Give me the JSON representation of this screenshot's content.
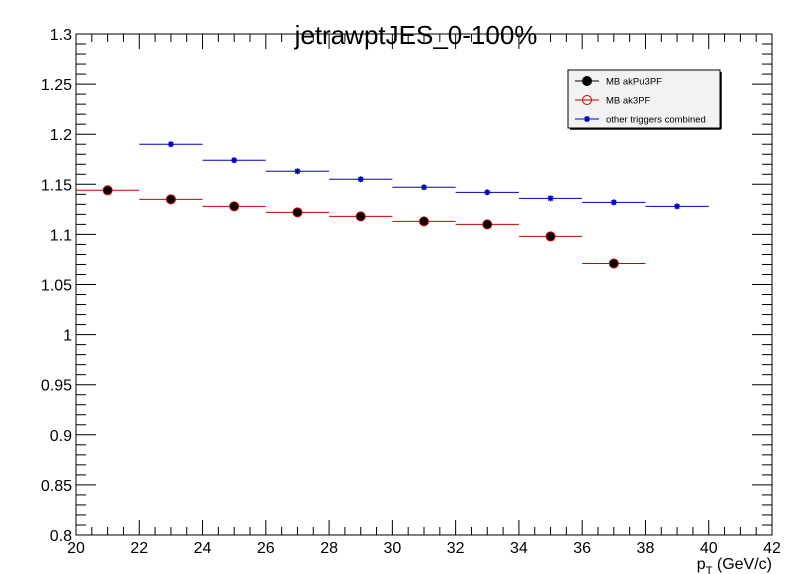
{
  "chart_data": {
    "type": "scatter",
    "title": "jetrawptJES_0-100%",
    "xlabel_main": "p",
    "xlabel_sub": "T",
    "xlabel_rest": " (GeV/c)",
    "ylabel": "",
    "xlim": [
      20,
      42
    ],
    "ylim": [
      0.8,
      1.3
    ],
    "x_ticks": [
      "20",
      "22",
      "24",
      "26",
      "28",
      "30",
      "32",
      "34",
      "36",
      "38",
      "40",
      "42"
    ],
    "y_ticks": [
      "0.8",
      "0.85",
      "0.9",
      "0.95",
      "1",
      "1.05",
      "1.1",
      "1.15",
      "1.2",
      "1.25",
      "1.3"
    ],
    "grid": false,
    "legend_position": "top-right",
    "series": [
      {
        "name": "MB akPu3PF",
        "marker": "filled-circle",
        "color": "#cc0000",
        "marker_fill": "#000000",
        "x": [
          21,
          23,
          25,
          27,
          29,
          31,
          33,
          35,
          37
        ],
        "xerr": 1,
        "y": [
          1.144,
          1.135,
          1.128,
          1.122,
          1.118,
          1.113,
          1.11,
          1.098,
          1.071
        ]
      },
      {
        "name": "MB ak3PF",
        "marker": "open-circle",
        "color": "#cc0000",
        "marker_fill": "none",
        "x": [],
        "xerr": 1,
        "y": []
      },
      {
        "name": "other triggers combined",
        "marker": "star",
        "color": "#0000cc",
        "marker_fill": "#0000cc",
        "x": [
          23,
          25,
          27,
          29,
          31,
          33,
          35,
          37,
          39
        ],
        "xerr": 1,
        "y": [
          1.19,
          1.174,
          1.163,
          1.155,
          1.147,
          1.142,
          1.136,
          1.132,
          1.128
        ]
      }
    ]
  }
}
